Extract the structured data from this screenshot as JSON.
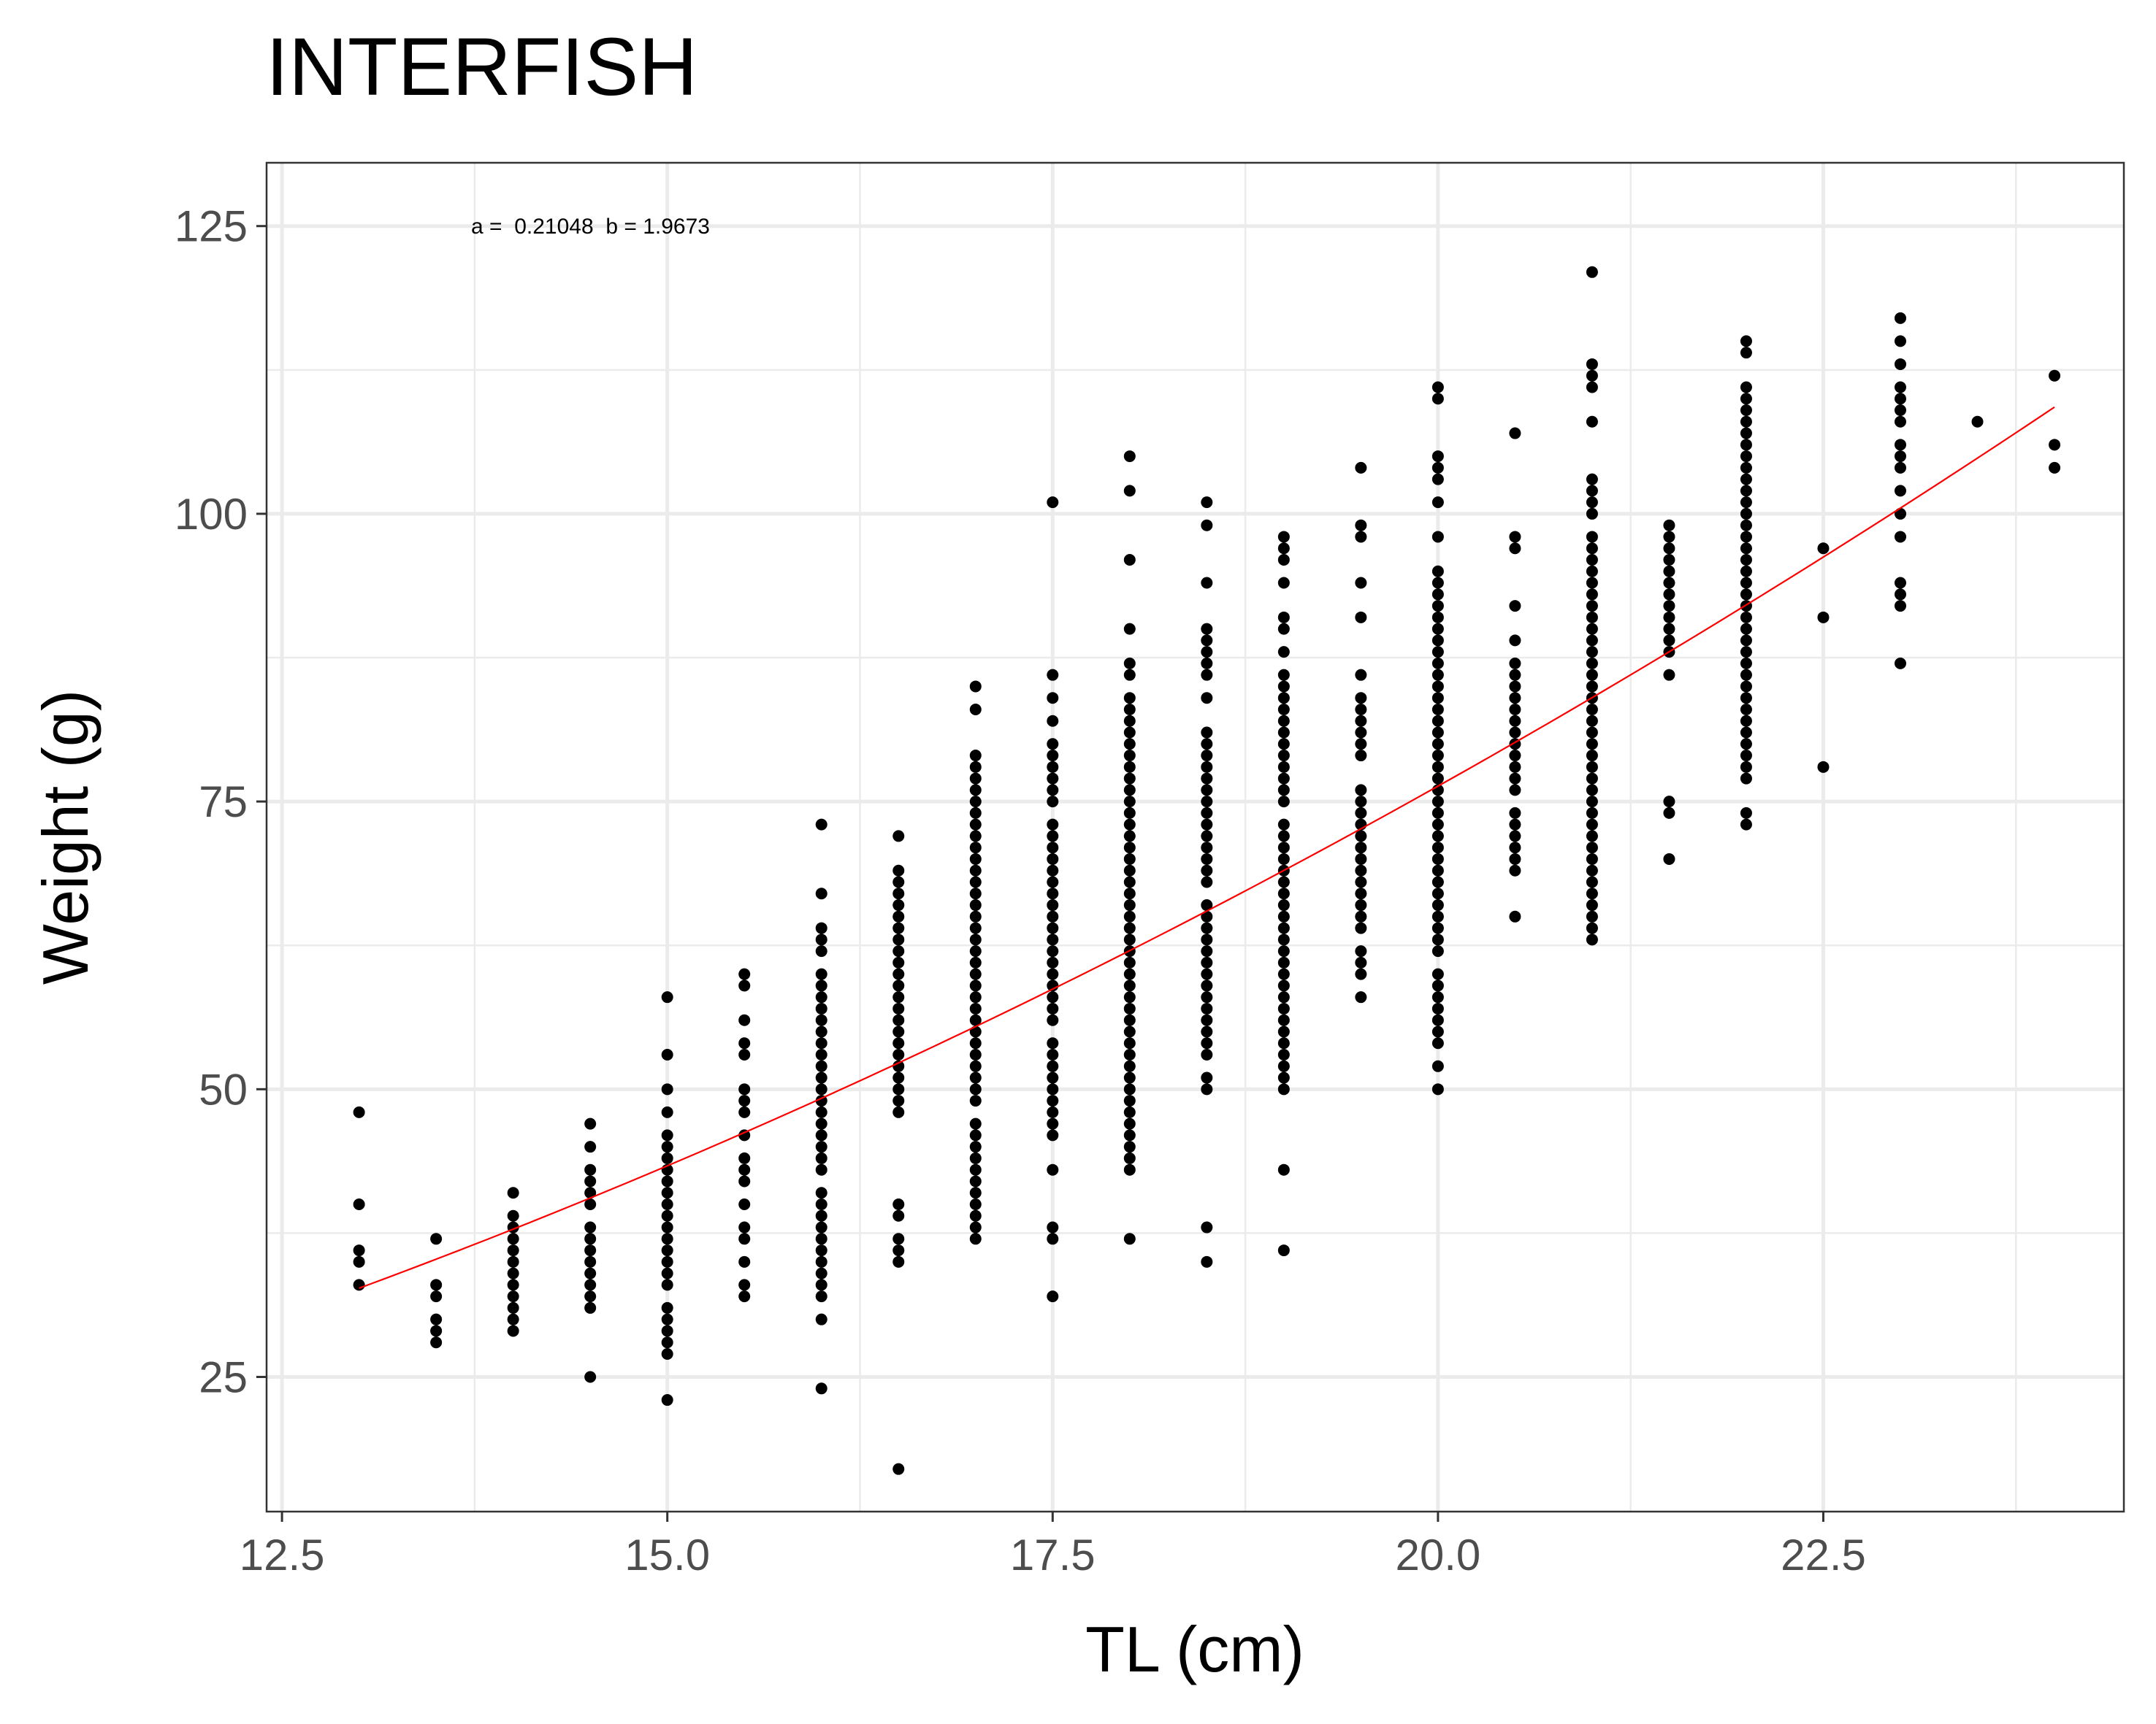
{
  "chart_data": {
    "type": "scatter",
    "title": "INTERFISH",
    "xlabel": "TL (cm)",
    "ylabel": "Weight (g)",
    "annotation": "a =  0.21048  b = 1.9673",
    "xlim": [
      12.4,
      24.45
    ],
    "ylim": [
      13.3,
      130.5
    ],
    "x_ticks": [
      12.5,
      15.0,
      17.5,
      20.0,
      22.5
    ],
    "x_tick_labels": [
      "12.5",
      "15.0",
      "17.5",
      "20.0",
      "22.5"
    ],
    "y_ticks": [
      25,
      50,
      75,
      100,
      125
    ],
    "y_tick_labels": [
      "25",
      "50",
      "75",
      "100",
      "125"
    ],
    "grid": true,
    "point_color": "#000000",
    "fit_color": "#ff0000",
    "fit": {
      "a": 0.21048,
      "b": 1.9673,
      "x_range": [
        13.0,
        24.0
      ]
    },
    "points": [
      {
        "x": 13.0,
        "y": [
          48,
          40,
          36,
          35,
          33
        ]
      },
      {
        "x": 13.5,
        "y": [
          37,
          33,
          32,
          30,
          29,
          28
        ]
      },
      {
        "x": 14.0,
        "y": [
          41,
          39,
          38,
          37,
          36,
          35,
          34,
          33,
          32,
          31,
          30,
          29
        ]
      },
      {
        "x": 14.5,
        "y": [
          47,
          45,
          43,
          42,
          41,
          40,
          38,
          37,
          36,
          35,
          34,
          33,
          32,
          31,
          25
        ]
      },
      {
        "x": 15.0,
        "y": [
          58,
          53,
          50,
          48,
          46,
          45,
          44,
          43,
          42,
          41,
          40,
          39,
          38,
          37,
          36,
          35,
          34,
          33,
          31,
          30,
          29,
          28,
          27,
          23
        ]
      },
      {
        "x": 15.5,
        "y": [
          60,
          59,
          56,
          54,
          53,
          50,
          49,
          48,
          46,
          44,
          43,
          42,
          40,
          38,
          37,
          35,
          33,
          32
        ]
      },
      {
        "x": 16.0,
        "y": [
          73,
          67,
          64,
          63,
          62,
          60,
          59,
          58,
          57,
          56,
          55,
          54,
          53,
          52,
          51,
          50,
          49,
          48,
          47,
          46,
          45,
          44,
          43,
          41,
          40,
          39,
          38,
          37,
          36,
          35,
          34,
          33,
          32,
          30,
          24
        ]
      },
      {
        "x": 16.5,
        "y": [
          72,
          69,
          68,
          67,
          66,
          65,
          64,
          63,
          62,
          61,
          60,
          59,
          58,
          57,
          56,
          55,
          54,
          53,
          52,
          51,
          50,
          49,
          48,
          40,
          39,
          37,
          36,
          35,
          17
        ]
      },
      {
        "x": 17.0,
        "y": [
          85,
          83,
          79,
          78,
          77,
          76,
          75,
          74,
          73,
          72,
          71,
          70,
          69,
          68,
          67,
          66,
          65,
          64,
          63,
          62,
          61,
          60,
          59,
          58,
          57,
          56,
          55,
          54,
          53,
          52,
          51,
          50,
          49,
          47,
          46,
          45,
          44,
          43,
          42,
          41,
          40,
          39,
          38,
          37
        ]
      },
      {
        "x": 17.5,
        "y": [
          101,
          86,
          84,
          82,
          80,
          79,
          78,
          77,
          76,
          75,
          73,
          72,
          71,
          70,
          69,
          68,
          67,
          66,
          65,
          64,
          63,
          62,
          61,
          60,
          59,
          58,
          57,
          56,
          54,
          53,
          52,
          51,
          50,
          49,
          48,
          47,
          46,
          43,
          38,
          37,
          32
        ]
      },
      {
        "x": 18.0,
        "y": [
          105,
          102,
          96,
          90,
          87,
          86,
          84,
          83,
          82,
          81,
          80,
          79,
          78,
          77,
          76,
          75,
          74,
          73,
          72,
          71,
          70,
          69,
          68,
          67,
          66,
          65,
          64,
          63,
          62,
          61,
          60,
          59,
          58,
          57,
          56,
          55,
          54,
          53,
          52,
          51,
          50,
          49,
          48,
          47,
          46,
          45,
          44,
          43,
          37
        ]
      },
      {
        "x": 18.5,
        "y": [
          101,
          99,
          94,
          90,
          89,
          88,
          87,
          86,
          84,
          81,
          80,
          79,
          78,
          77,
          76,
          75,
          74,
          73,
          72,
          71,
          70,
          69,
          68,
          66,
          65,
          64,
          63,
          62,
          61,
          60,
          59,
          58,
          57,
          56,
          55,
          54,
          53,
          51,
          50,
          38,
          35
        ]
      },
      {
        "x": 19.0,
        "y": [
          98,
          97,
          96,
          94,
          91,
          90,
          88,
          86,
          85,
          84,
          83,
          82,
          81,
          80,
          79,
          78,
          77,
          76,
          75,
          73,
          72,
          71,
          70,
          69,
          68,
          67,
          66,
          65,
          64,
          63,
          62,
          61,
          60,
          59,
          58,
          57,
          56,
          55,
          54,
          53,
          52,
          51,
          50,
          43,
          36
        ]
      },
      {
        "x": 19.5,
        "y": [
          104,
          99,
          98,
          94,
          91,
          86,
          84,
          83,
          82,
          81,
          80,
          79,
          76,
          75,
          74,
          73,
          72,
          71,
          70,
          69,
          68,
          67,
          66,
          65,
          64,
          62,
          61,
          60,
          58
        ]
      },
      {
        "x": 20.0,
        "y": [
          111,
          110,
          105,
          104,
          103,
          101,
          98,
          95,
          94,
          93,
          92,
          91,
          90,
          89,
          88,
          87,
          86,
          85,
          84,
          83,
          82,
          81,
          80,
          79,
          78,
          77,
          76,
          75,
          74,
          73,
          72,
          71,
          70,
          69,
          68,
          67,
          66,
          65,
          64,
          63,
          62,
          60,
          59,
          58,
          57,
          56,
          55,
          54,
          52,
          50
        ]
      },
      {
        "x": 20.5,
        "y": [
          107,
          98,
          97,
          92,
          89,
          87,
          86,
          85,
          84,
          83,
          82,
          81,
          80,
          79,
          78,
          77,
          76,
          74,
          73,
          72,
          71,
          70,
          69,
          65
        ]
      },
      {
        "x": 21.0,
        "y": [
          121,
          113,
          112,
          111,
          108,
          103,
          102,
          101,
          100,
          98,
          97,
          96,
          95,
          94,
          93,
          92,
          91,
          90,
          89,
          88,
          87,
          86,
          85,
          84,
          83,
          82,
          81,
          80,
          79,
          78,
          77,
          76,
          75,
          74,
          73,
          72,
          71,
          70,
          69,
          68,
          67,
          66,
          65,
          64,
          63
        ]
      },
      {
        "x": 21.5,
        "y": [
          99,
          98,
          97,
          96,
          95,
          94,
          93,
          92,
          91,
          90,
          89,
          88,
          86,
          75,
          74,
          70
        ]
      },
      {
        "x": 22.0,
        "y": [
          115,
          114,
          111,
          110,
          109,
          108,
          107,
          106,
          105,
          104,
          103,
          102,
          101,
          100,
          99,
          98,
          97,
          96,
          95,
          94,
          93,
          92,
          91,
          90,
          89,
          88,
          87,
          86,
          85,
          84,
          83,
          82,
          81,
          80,
          79,
          78,
          77,
          74,
          73
        ]
      },
      {
        "x": 22.5,
        "y": [
          97,
          91,
          78
        ]
      },
      {
        "x": 23.0,
        "y": [
          117,
          115,
          113,
          111,
          110,
          109,
          108,
          106,
          105,
          104,
          102,
          100,
          98,
          94,
          93,
          92,
          87
        ]
      },
      {
        "x": 23.5,
        "y": [
          108
        ]
      },
      {
        "x": 24.0,
        "y": [
          112,
          106,
          104
        ]
      }
    ]
  }
}
